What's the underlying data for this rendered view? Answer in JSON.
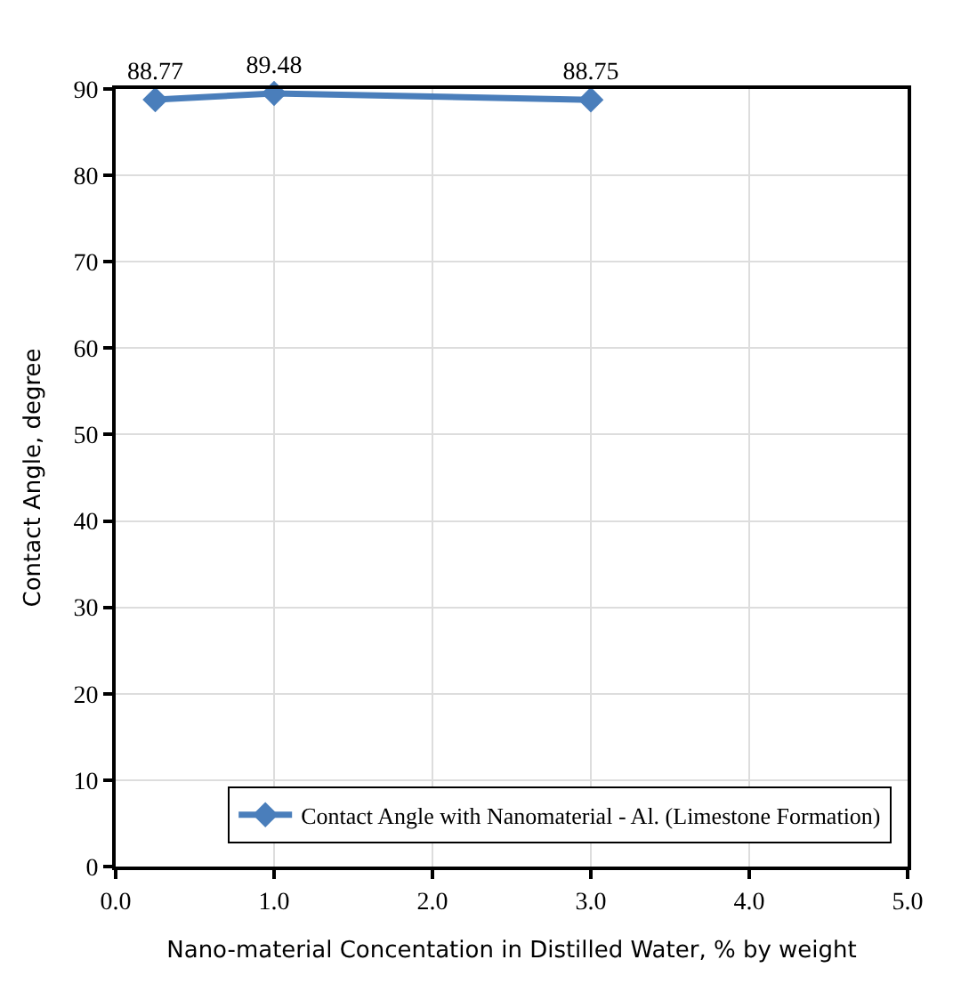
{
  "chart_data": {
    "type": "line",
    "xlabel": "Nano-material Concentation in Distilled Water, % by weight",
    "ylabel": "Contact Angle, degree",
    "x": [
      0.25,
      1.0,
      3.0
    ],
    "series": [
      {
        "name": "Contact Angle with Nanomaterial - Al. (Limestone Formation)",
        "color": "#4a7ebb",
        "values": [
          88.77,
          89.48,
          88.75
        ]
      }
    ],
    "data_labels": true,
    "xlim": [
      0,
      5
    ],
    "xticks": [
      {
        "value": 0,
        "label": "0.0"
      },
      {
        "value": 1,
        "label": "1.0"
      },
      {
        "value": 2,
        "label": "2.0"
      },
      {
        "value": 3,
        "label": "3.0"
      },
      {
        "value": 4,
        "label": "4.0"
      },
      {
        "value": 5,
        "label": "5.0"
      }
    ],
    "ylim": [
      0,
      90
    ],
    "yticks": [
      0,
      10,
      20,
      30,
      40,
      50,
      60,
      70,
      80,
      90
    ],
    "grid": true,
    "legend": "bottom right",
    "marker": "diamond",
    "line_style": "solid"
  }
}
